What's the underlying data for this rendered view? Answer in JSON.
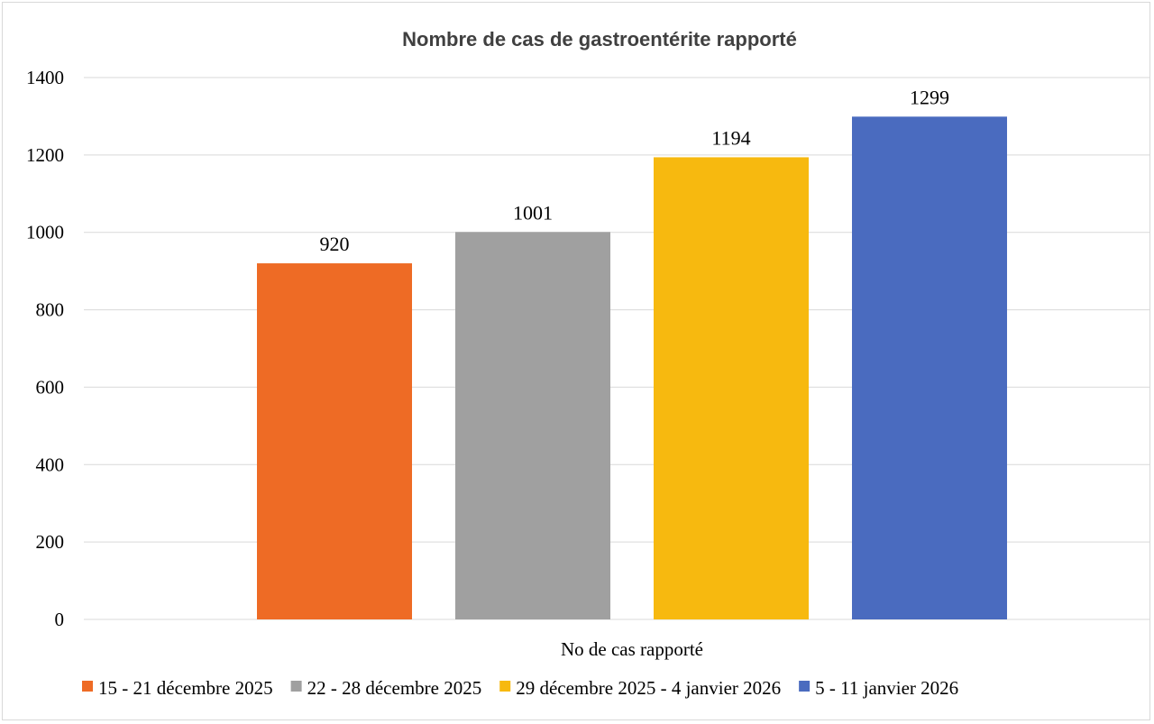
{
  "chart_data": {
    "type": "bar",
    "title": "Nombre de cas de gastroentérite rapporté",
    "xlabel": "No de cas rapporté",
    "ylabel": "",
    "ylim": [
      0,
      1400
    ],
    "yticks": [
      0,
      200,
      400,
      600,
      800,
      1000,
      1200,
      1400
    ],
    "grid": true,
    "legend_position": "bottom",
    "categories": [
      "No de cas rapporté"
    ],
    "series": [
      {
        "name": "15 - 21 décembre 2025",
        "values": [
          920
        ],
        "color": "#ee6b25"
      },
      {
        "name": "22 - 28 décembre 2025",
        "values": [
          1001
        ],
        "color": "#a0a0a0"
      },
      {
        "name": "29 décembre 2025 - 4 janvier 2026",
        "values": [
          1194
        ],
        "color": "#f7b90f"
      },
      {
        "name": "5 - 11 janvier 2026",
        "values": [
          1299
        ],
        "color": "#4a6bbf"
      }
    ]
  }
}
